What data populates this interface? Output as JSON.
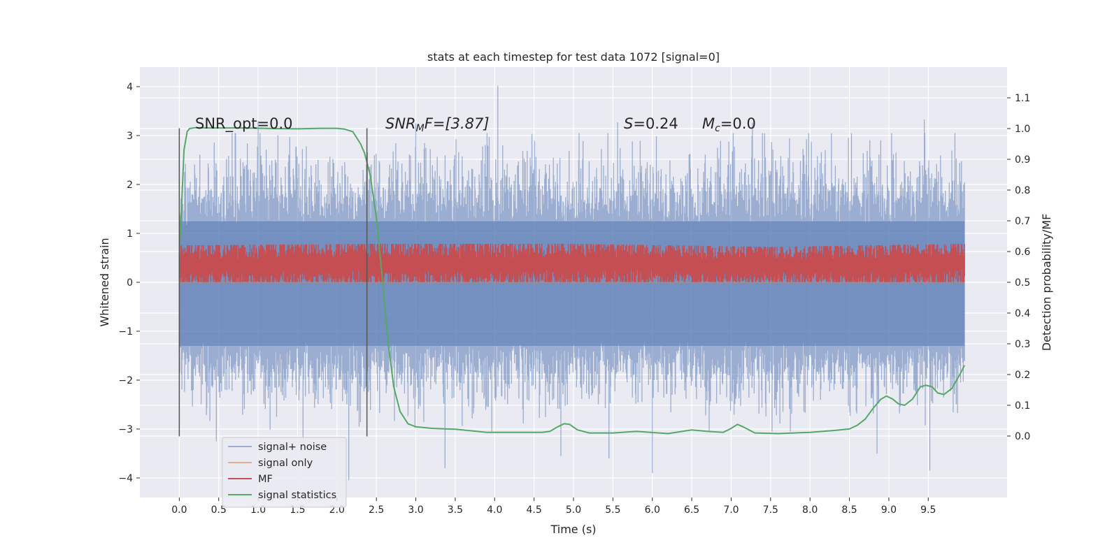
{
  "chart_data": {
    "type": "line",
    "title": "stats at each timestep for test data 1072 [signal=0]",
    "xlabel": "Time (s)",
    "ylabel": "Whitened strain",
    "ylabel_right": "Detection probability/MF",
    "xlim": [
      -0.5,
      10.5
    ],
    "ylim": [
      -4.4,
      4.4
    ],
    "ylim_right": [
      -0.2,
      1.2
    ],
    "x_ticks": [
      0.0,
      0.5,
      1.0,
      1.5,
      2.0,
      2.5,
      3.0,
      3.5,
      4.0,
      4.5,
      5.0,
      5.5,
      6.0,
      6.5,
      7.0,
      7.5,
      8.0,
      8.5,
      9.0,
      9.5
    ],
    "x_tick_labels": [
      "0.0",
      "0.5",
      "1.0",
      "1.5",
      "2.0",
      "2.5",
      "3.0",
      "3.5",
      "4.0",
      "4.5",
      "5.0",
      "5.5",
      "6.0",
      "6.5",
      "7.0",
      "7.5",
      "8.0",
      "8.5",
      "9.0",
      "9.5"
    ],
    "y_ticks": [
      -4,
      -3,
      -2,
      -1,
      0,
      1,
      2,
      3,
      4
    ],
    "y_tick_labels": [
      "−4",
      "−3",
      "−2",
      "−1",
      "0",
      "1",
      "2",
      "3",
      "4"
    ],
    "y_right_ticks": [
      0.0,
      0.1,
      0.2,
      0.3,
      0.4,
      0.5,
      0.6,
      0.7,
      0.8,
      0.9,
      1.0,
      1.1
    ],
    "y_right_tick_labels": [
      "0.0",
      "0.1",
      "0.2",
      "0.3",
      "0.4",
      "0.5",
      "0.6",
      "0.7",
      "0.8",
      "0.9",
      "1.0",
      "1.1"
    ],
    "grid": true,
    "legend_position": "lower-left",
    "annotations": {
      "snr_opt": "SNR_opt=0.0",
      "snr_mf_base": "SNR",
      "snr_mf_sub": "M",
      "snr_mf_rest": "F=[3.87]",
      "s_var": "S",
      "s_rest": "=0.24",
      "mc_var": "M",
      "mc_sub": "c",
      "mc_rest": "=0.0"
    },
    "vlines": [
      {
        "x": 0.0,
        "ymin": -3.15,
        "ymax": 3.15
      },
      {
        "x": 2.38,
        "ymin": -3.15,
        "ymax": 3.15
      }
    ],
    "series": [
      {
        "name": "signal+ noise",
        "color": "#4c72b0",
        "axis": "left",
        "kind": "noise",
        "envelope_x": [
          0.0,
          1.0,
          2.0,
          3.0,
          4.0,
          5.0,
          6.0,
          7.0,
          8.0,
          9.0,
          9.96
        ],
        "envelope_hi": [
          2.4,
          2.5,
          2.4,
          2.5,
          2.5,
          2.5,
          2.4,
          2.5,
          2.5,
          2.4,
          2.5
        ],
        "envelope_lo": [
          -2.3,
          -2.4,
          -2.3,
          -2.4,
          -2.4,
          -2.4,
          -2.3,
          -2.4,
          -2.4,
          -2.3,
          -2.4
        ],
        "spikes": [
          [
            4.04,
            4.02
          ],
          [
            5.56,
            3.27
          ],
          [
            1.0,
            3.3
          ],
          [
            9.45,
            3.33
          ],
          [
            7.27,
            3.26
          ],
          [
            3.0,
            3.25
          ],
          [
            6.0,
            -3.9
          ],
          [
            4.84,
            -3.55
          ],
          [
            3.37,
            -3.8
          ],
          [
            2.15,
            -4.05
          ],
          [
            9.52,
            -3.85
          ],
          [
            8.85,
            -3.5
          ],
          [
            5.45,
            -3.6
          ],
          [
            1.57,
            -3.2
          ],
          [
            0.47,
            -3.25
          ]
        ]
      },
      {
        "name": "signal only",
        "color": "#dd8452",
        "axis": "left",
        "x": [
          0.0,
          9.96
        ],
        "y": [
          0.0,
          0.0
        ]
      },
      {
        "name": "MF",
        "color": "#c44e52",
        "axis": "right",
        "kind": "band",
        "band_x": [
          0.0,
          2.5,
          5.0,
          7.5,
          9.96
        ],
        "band_lo": [
          0.505,
          0.505,
          0.505,
          0.505,
          0.505
        ],
        "band_hi": [
          0.605,
          0.61,
          0.61,
          0.6,
          0.61
        ]
      },
      {
        "name": "signal statistics",
        "color": "#55a868",
        "axis": "right",
        "x": [
          0.0,
          0.03,
          0.06,
          0.1,
          0.13,
          0.2,
          0.4,
          0.8,
          1.2,
          1.5,
          1.8,
          2.0,
          2.1,
          2.2,
          2.3,
          2.35,
          2.42,
          2.5,
          2.58,
          2.65,
          2.72,
          2.8,
          2.9,
          3.0,
          3.2,
          3.5,
          3.9,
          4.3,
          4.6,
          4.7,
          4.8,
          4.88,
          4.95,
          5.05,
          5.2,
          5.5,
          5.8,
          6.2,
          6.5,
          6.7,
          6.9,
          7.0,
          7.08,
          7.15,
          7.3,
          7.6,
          8.0,
          8.3,
          8.5,
          8.6,
          8.7,
          8.8,
          8.9,
          8.97,
          9.05,
          9.12,
          9.2,
          9.3,
          9.4,
          9.47,
          9.55,
          9.62,
          9.7,
          9.8,
          9.9,
          9.96
        ],
        "y": [
          0.58,
          0.75,
          0.93,
          0.99,
          1.0,
          1.003,
          1.002,
          1.002,
          1.0,
          0.999,
          1.001,
          1.001,
          0.998,
          0.99,
          0.95,
          0.92,
          0.85,
          0.71,
          0.5,
          0.3,
          0.16,
          0.08,
          0.04,
          0.03,
          0.025,
          0.022,
          0.012,
          0.012,
          0.012,
          0.015,
          0.03,
          0.04,
          0.038,
          0.02,
          0.01,
          0.01,
          0.015,
          0.008,
          0.02,
          0.015,
          0.012,
          0.025,
          0.038,
          0.03,
          0.01,
          0.008,
          0.012,
          0.018,
          0.023,
          0.035,
          0.055,
          0.09,
          0.12,
          0.13,
          0.12,
          0.105,
          0.1,
          0.12,
          0.16,
          0.165,
          0.16,
          0.14,
          0.135,
          0.155,
          0.2,
          0.23
        ]
      }
    ]
  }
}
